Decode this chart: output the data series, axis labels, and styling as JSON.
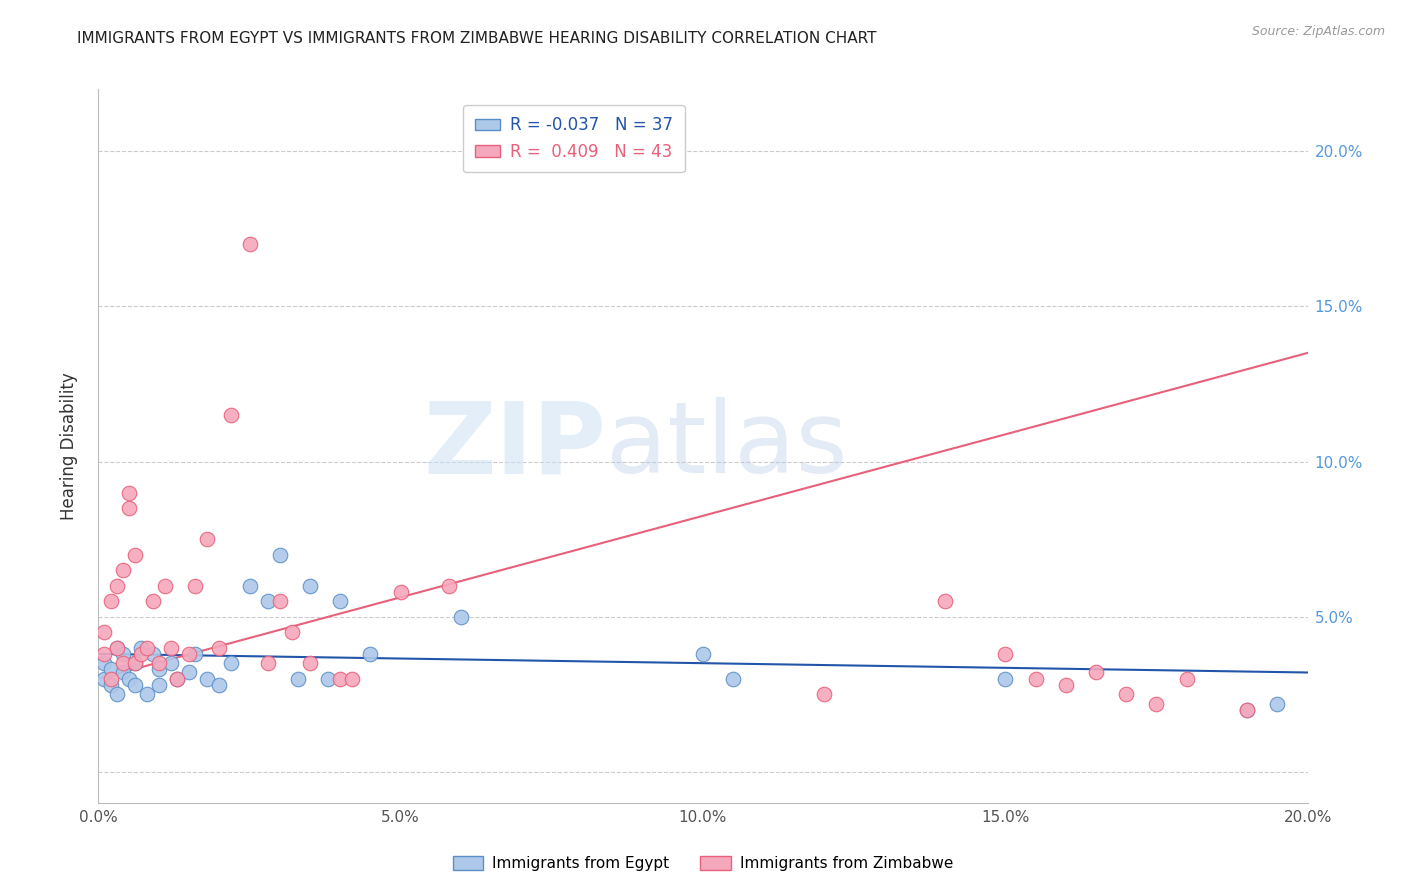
{
  "title": "IMMIGRANTS FROM EGYPT VS IMMIGRANTS FROM ZIMBABWE HEARING DISABILITY CORRELATION CHART",
  "source": "Source: ZipAtlas.com",
  "ylabel": "Hearing Disability",
  "xlabel": "",
  "xlim": [
    0.0,
    0.2
  ],
  "ylim": [
    -0.01,
    0.22
  ],
  "yticks": [
    0.0,
    0.05,
    0.1,
    0.15,
    0.2
  ],
  "xticks": [
    0.0,
    0.05,
    0.1,
    0.15,
    0.2
  ],
  "ytick_labels": [
    "",
    "5.0%",
    "10.0%",
    "15.0%",
    "20.0%"
  ],
  "xtick_labels": [
    "0.0%",
    "5.0%",
    "10.0%",
    "15.0%",
    "20.0%"
  ],
  "egypt_color": "#adc8e8",
  "zimbabwe_color": "#f5a8bc",
  "egypt_edge_color": "#5b8fc9",
  "zimbabwe_edge_color": "#e8607a",
  "line_egypt_color": "#2255aa",
  "line_zimbabwe_color": "#e8607a",
  "egypt_R": -0.037,
  "egypt_N": 37,
  "zimbabwe_R": 0.409,
  "zimbabwe_N": 43,
  "egypt_line_x": [
    0.0,
    0.2
  ],
  "egypt_line_y": [
    0.038,
    0.032
  ],
  "zimbabwe_line_x": [
    0.0,
    0.2
  ],
  "zimbabwe_line_y": [
    0.03,
    0.135
  ],
  "egypt_scatter_x": [
    0.001,
    0.001,
    0.002,
    0.002,
    0.003,
    0.003,
    0.004,
    0.004,
    0.005,
    0.006,
    0.006,
    0.007,
    0.008,
    0.009,
    0.01,
    0.01,
    0.012,
    0.013,
    0.015,
    0.016,
    0.018,
    0.02,
    0.022,
    0.025,
    0.028,
    0.03,
    0.033,
    0.035,
    0.038,
    0.04,
    0.045,
    0.06,
    0.1,
    0.105,
    0.15,
    0.19,
    0.195
  ],
  "egypt_scatter_y": [
    0.035,
    0.03,
    0.033,
    0.028,
    0.04,
    0.025,
    0.038,
    0.032,
    0.03,
    0.035,
    0.028,
    0.04,
    0.025,
    0.038,
    0.033,
    0.028,
    0.035,
    0.03,
    0.032,
    0.038,
    0.03,
    0.028,
    0.035,
    0.06,
    0.055,
    0.07,
    0.03,
    0.06,
    0.03,
    0.055,
    0.038,
    0.05,
    0.038,
    0.03,
    0.03,
    0.02,
    0.022
  ],
  "zimbabwe_scatter_x": [
    0.001,
    0.001,
    0.002,
    0.002,
    0.003,
    0.003,
    0.004,
    0.004,
    0.005,
    0.005,
    0.006,
    0.006,
    0.007,
    0.008,
    0.009,
    0.01,
    0.011,
    0.012,
    0.013,
    0.015,
    0.016,
    0.018,
    0.02,
    0.022,
    0.025,
    0.028,
    0.03,
    0.032,
    0.035,
    0.04,
    0.042,
    0.05,
    0.058,
    0.12,
    0.14,
    0.15,
    0.155,
    0.16,
    0.165,
    0.17,
    0.175,
    0.18,
    0.19
  ],
  "zimbabwe_scatter_y": [
    0.038,
    0.045,
    0.03,
    0.055,
    0.04,
    0.06,
    0.035,
    0.065,
    0.085,
    0.09,
    0.07,
    0.035,
    0.038,
    0.04,
    0.055,
    0.035,
    0.06,
    0.04,
    0.03,
    0.038,
    0.06,
    0.075,
    0.04,
    0.115,
    0.17,
    0.035,
    0.055,
    0.045,
    0.035,
    0.03,
    0.03,
    0.058,
    0.06,
    0.025,
    0.055,
    0.038,
    0.03,
    0.028,
    0.032,
    0.025,
    0.022,
    0.03,
    0.02
  ],
  "background_color": "#ffffff",
  "grid_color": "#cccccc",
  "watermark_text": "ZIP",
  "watermark_text2": "atlas",
  "title_color": "#222222",
  "axis_label_color": "#333333",
  "right_axis_tick_color": "#5599dd"
}
